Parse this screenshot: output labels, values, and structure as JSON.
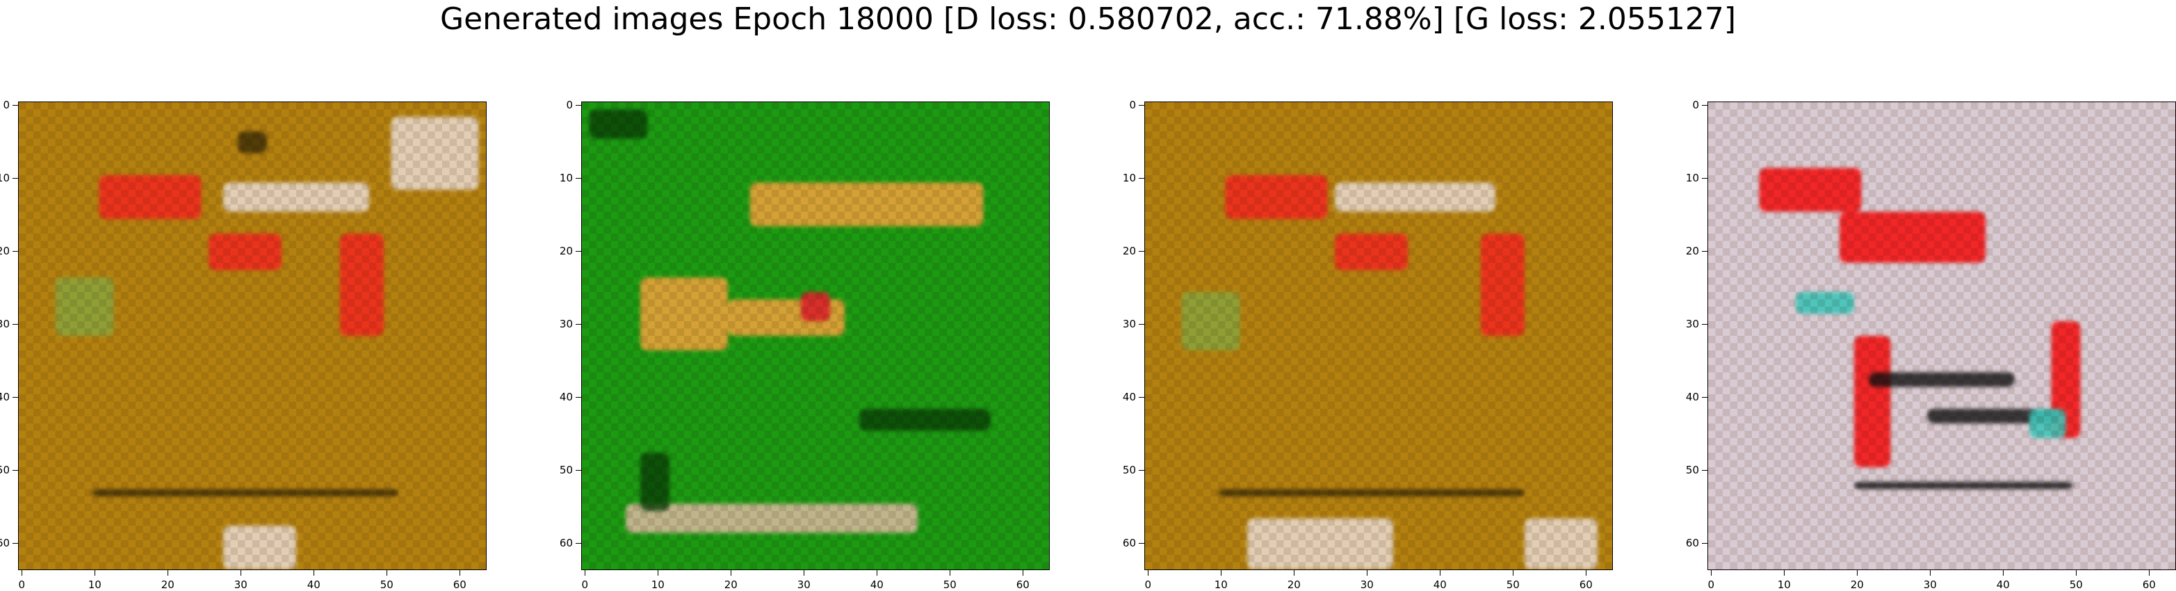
{
  "title": "Generated images Epoch 18000 [D loss: 0.580702, acc.: 71.88%] [G loss: 2.055127]",
  "chart_data": {
    "type": "image-grid",
    "panels": 4,
    "image_resolution": [
      64,
      64
    ],
    "x_ticks": [
      "0",
      "10",
      "20",
      "30",
      "40",
      "50",
      "60"
    ],
    "y_ticks": [
      "0",
      "10",
      "20",
      "30",
      "40",
      "50",
      "60"
    ],
    "xlim": [
      -0.5,
      63.5
    ],
    "ylim": [
      63.5,
      -0.5
    ],
    "panel_palettes": [
      {
        "name": "",
        "base": "#b3810f",
        "accent": "#ee2a1e",
        "dark": "#3a2a08",
        "light": "#e6d6c8",
        "extra": "#8ca23a"
      },
      {
        "name": "",
        "base": "#1c9a12",
        "accent": "#e8a23a",
        "dark": "#0a3d06",
        "light": "#d2b89a",
        "extra": "#d8222a"
      },
      {
        "name": "",
        "base": "#b3810f",
        "accent": "#ee2a1e",
        "dark": "#3a2a08",
        "light": "#e6d6c8",
        "extra": "#8ca23a"
      },
      {
        "name": "",
        "base": "#d9cbd3",
        "accent": "#f21414",
        "dark": "#101010",
        "light": "#f2eef2",
        "extra": "#3fc3b8"
      }
    ]
  }
}
